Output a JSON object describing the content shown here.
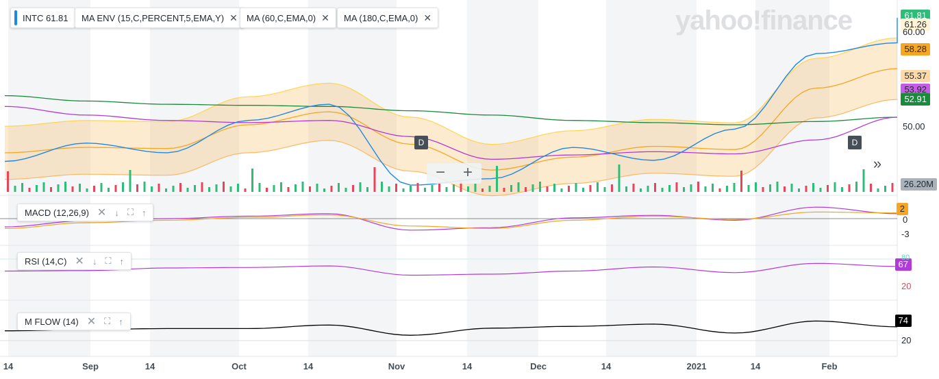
{
  "header": {
    "ticker": "INTC",
    "price": "61.81",
    "studies": [
      "MA ENV (15,C,PERCENT,5,EMA,Y)",
      "MA (60,C,EMA,0)",
      "MA (180,C,EMA,0)"
    ],
    "close_icon": "✕"
  },
  "logo": "yahoo!finance",
  "panels": {
    "macd": {
      "label": "MACD (12,26,9)",
      "value": "2"
    },
    "rsi": {
      "label": "RSI (14,C)",
      "value": "67"
    },
    "mflow": {
      "label": "M FLOW (14)",
      "value": "74"
    }
  },
  "badges": {
    "last": "61.81",
    "ma_env_upper": "61.26",
    "ma_env_mid": "58.28",
    "ma_env_lower": "55.37",
    "ma180": "53.92",
    "ma60": "52.91",
    "volume": "26.20M"
  },
  "axis": {
    "price_ticks": [
      "60.00",
      "50.00"
    ],
    "macd_ticks": [
      "0",
      "-3"
    ],
    "rsi_ticks": [
      "80",
      "20"
    ],
    "mflow_ticks": [
      "20"
    ],
    "x_labels": [
      "14",
      "Sep",
      "14",
      "Oct",
      "14",
      "Nov",
      "14",
      "Dec",
      "14",
      "2021",
      "14",
      "Feb"
    ]
  },
  "markers": [
    "D",
    "D"
  ],
  "controls": {
    "zoom_out": "−",
    "zoom_in": "+",
    "next": "»"
  },
  "colors": {
    "price": "#1e88e5",
    "env": "#f5a623",
    "ma60": "#1a8a3c",
    "ma180": "#b23bd8",
    "up": "#2dbd78",
    "down": "#e8455a"
  },
  "chart_data": {
    "type": "line",
    "x": [
      "Aug 14",
      "Sep",
      "Sep 14",
      "Oct",
      "Oct 14",
      "Nov",
      "Nov 14",
      "Dec",
      "Dec 14",
      "2021",
      "Jan 14",
      "Feb"
    ],
    "series": [
      {
        "name": "INTC",
        "values": [
          48.5,
          50.2,
          49.3,
          52.3,
          53.8,
          46.3,
          46.9,
          49.8,
          48.6,
          51.5,
          58.5,
          59.5
        ]
      },
      {
        "name": "MA ENV (15,C,PERCENT,5,EMA,Y)",
        "values": [
          49.3,
          49.8,
          49.7,
          51.9,
          53.1,
          50.1,
          47.7,
          48.9,
          49.9,
          49.6,
          55.3,
          57.1
        ]
      },
      {
        "name": "MA (60,C,EMA,0)",
        "values": [
          54.6,
          54.1,
          53.8,
          53.7,
          53.6,
          53.2,
          52.8,
          52.3,
          52.1,
          51.9,
          52.2,
          52.6
        ]
      },
      {
        "name": "MA (180,C,EMA,0)",
        "values": [
          53.6,
          52.8,
          52.3,
          52.1,
          52.3,
          50.8,
          48.7,
          49.1,
          49.4,
          49.2,
          50.5,
          52.6
        ]
      }
    ],
    "ylim": [
      45.8,
      62.2
    ],
    "last_close": 61.81
  }
}
